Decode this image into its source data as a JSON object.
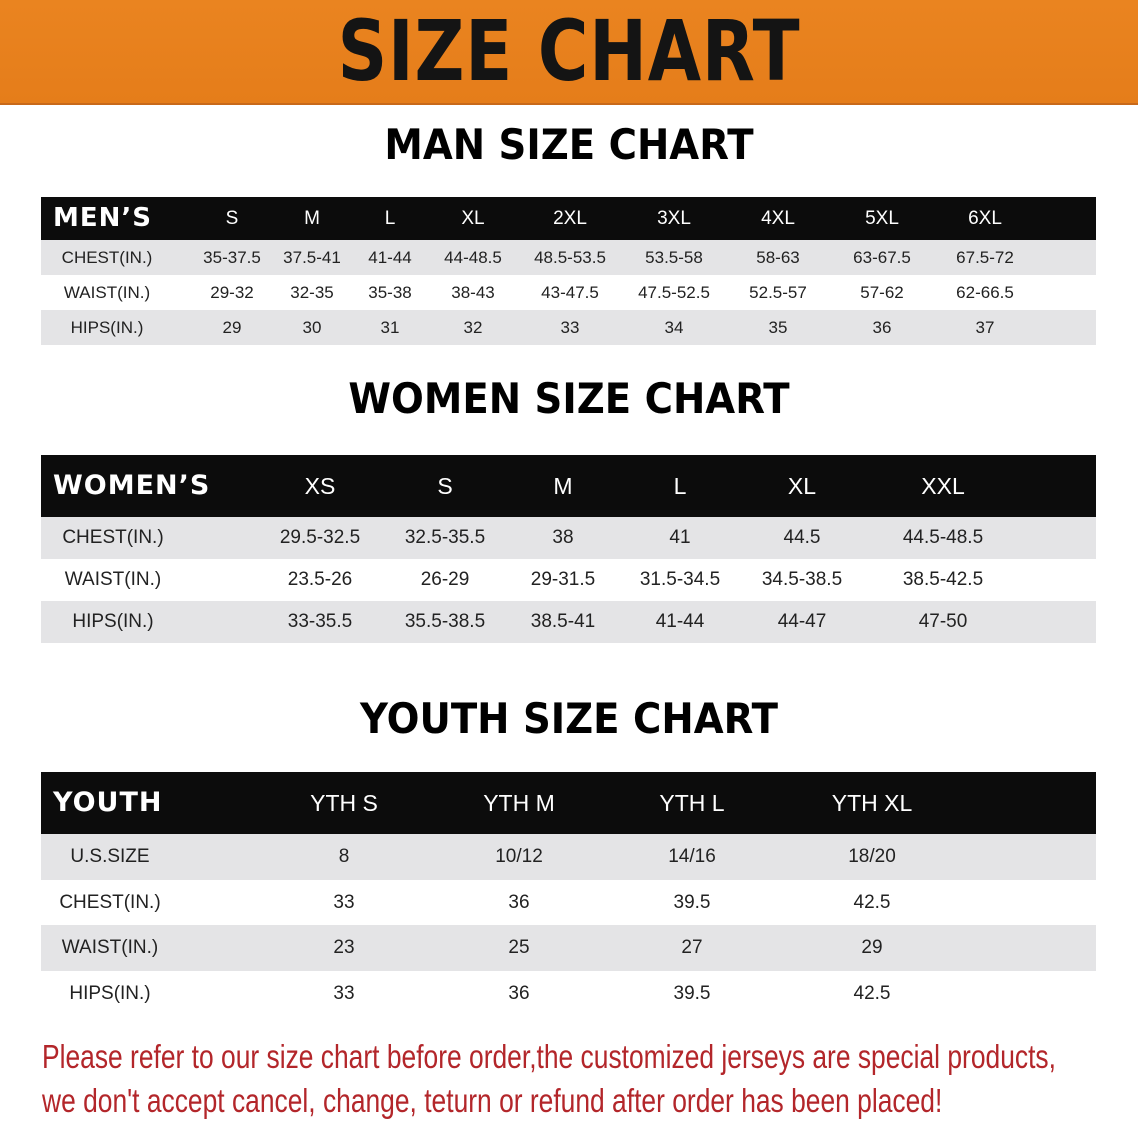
{
  "banner_title": "SIZE CHART",
  "men": {
    "title": "MAN SIZE CHART",
    "header_label": "MEN’S",
    "sizes": [
      "S",
      "M",
      "L",
      "XL",
      "2XL",
      "3XL",
      "4XL",
      "5XL",
      "6XL"
    ],
    "rows": [
      {
        "label": "CHEST(IN.)",
        "values": [
          "35-37.5",
          "37.5-41",
          "41-44",
          "44-48.5",
          "48.5-53.5",
          "53.5-58",
          "58-63",
          "63-67.5",
          "67.5-72"
        ]
      },
      {
        "label": "WAIST(IN.)",
        "values": [
          "29-32",
          "32-35",
          "35-38",
          "38-43",
          "43-47.5",
          "47.5-52.5",
          "52.5-57",
          "57-62",
          "62-66.5"
        ]
      },
      {
        "label": "HIPS(IN.)",
        "values": [
          "29",
          "30",
          "31",
          "32",
          "33",
          "34",
          "35",
          "36",
          "37"
        ]
      }
    ]
  },
  "women": {
    "title": "WOMEN SIZE CHART",
    "header_label": "WOMEN’S",
    "sizes": [
      "XS",
      "S",
      "M",
      "L",
      "XL",
      "XXL"
    ],
    "rows": [
      {
        "label": "CHEST(IN.)",
        "values": [
          "29.5-32.5",
          "32.5-35.5",
          "38",
          "41",
          "44.5",
          "44.5-48.5"
        ]
      },
      {
        "label": "WAIST(IN.)",
        "values": [
          "23.5-26",
          "26-29",
          "29-31.5",
          "31.5-34.5",
          "34.5-38.5",
          "38.5-42.5"
        ]
      },
      {
        "label": "HIPS(IN.)",
        "values": [
          "33-35.5",
          "35.5-38.5",
          "38.5-41",
          "41-44",
          "44-47",
          "47-50"
        ]
      }
    ]
  },
  "youth": {
    "title": "YOUTH SIZE CHART",
    "header_label": "YOUTH",
    "sizes": [
      "YTH S",
      "YTH M",
      "YTH L",
      "YTH XL"
    ],
    "rows": [
      {
        "label": "U.S.SIZE",
        "values": [
          "8",
          "10/12",
          "14/16",
          "18/20"
        ]
      },
      {
        "label": "CHEST(IN.)",
        "values": [
          "33",
          "36",
          "39.5",
          "42.5"
        ]
      },
      {
        "label": "WAIST(IN.)",
        "values": [
          "23",
          "25",
          "27",
          "29"
        ]
      },
      {
        "label": "HIPS(IN.)",
        "values": [
          "33",
          "36",
          "39.5",
          "42.5"
        ]
      }
    ]
  },
  "notice": {
    "line1": "Please refer to our size chart before order,the customized jerseys are special products,",
    "line2": "we don't accept cancel, change, teturn or refund after order has been placed!"
  },
  "colors": {
    "banner": "#e9801e",
    "header_row": "#0c0c0c",
    "stripe": "#e4e4e6",
    "notice": "#b3262a"
  }
}
